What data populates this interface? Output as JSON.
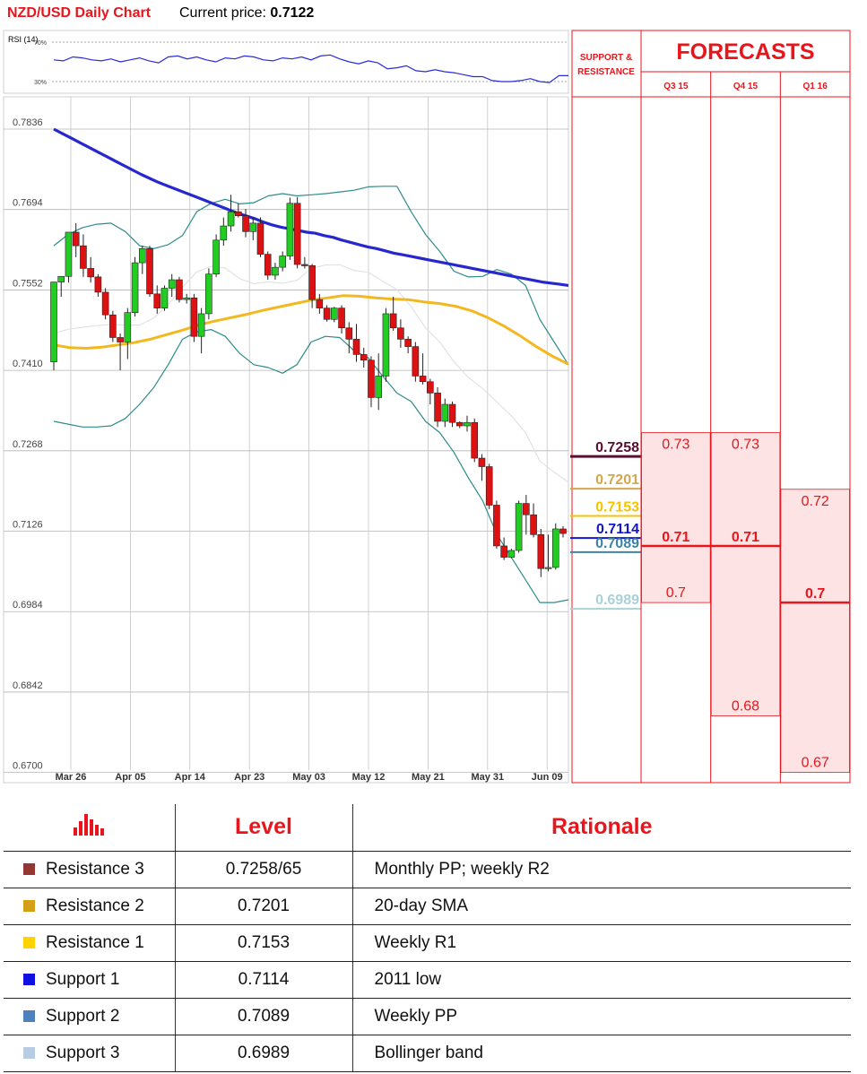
{
  "header": {
    "title": "NZD/USD Daily Chart",
    "price_label": "Current price:",
    "price_value": "0.7122"
  },
  "chart_data": [
    {
      "type": "line",
      "title": "RSI (14)",
      "ylim": [
        20,
        80
      ],
      "reference_lines": [
        {
          "label": "70%",
          "value": 70
        },
        {
          "label": "30%",
          "value": 30
        }
      ],
      "values": [
        52,
        51,
        55,
        54,
        52,
        51,
        53,
        50,
        52,
        54,
        51,
        49,
        55,
        56,
        53,
        55,
        52,
        50,
        54,
        53,
        56,
        55,
        52,
        51,
        54,
        53,
        55,
        52,
        56,
        57,
        53,
        50,
        48,
        51,
        49,
        43,
        44,
        46,
        41,
        40,
        42,
        40,
        39,
        37,
        35,
        35,
        31,
        30,
        30,
        31,
        33,
        30,
        29,
        36,
        36
      ],
      "color": "#2b2bd6"
    },
    {
      "type": "candlestick",
      "ylim": [
        0.6682,
        0.7893
      ],
      "y_ticks": [
        "0.7836",
        "0.7694",
        "0.7552",
        "0.7410",
        "0.7268",
        "0.7126",
        "0.6984",
        "0.6842",
        "0.6700"
      ],
      "x_ticks": [
        "Mar 26",
        "Apr 05",
        "Apr 14",
        "Apr 23",
        "May 03",
        "May 12",
        "May 21",
        "May 31",
        "Jun 09"
      ],
      "candles": [
        [
          0.7425,
          0.7566,
          0.741,
          0.7566
        ],
        [
          0.7566,
          0.7576,
          0.754,
          0.7576
        ],
        [
          0.7576,
          0.7654,
          0.7565,
          0.7654
        ],
        [
          0.7654,
          0.767,
          0.761,
          0.763
        ],
        [
          0.763,
          0.765,
          0.7575,
          0.759
        ],
        [
          0.759,
          0.761,
          0.7565,
          0.7575
        ],
        [
          0.7575,
          0.758,
          0.754,
          0.7548
        ],
        [
          0.7548,
          0.7555,
          0.75,
          0.7508
        ],
        [
          0.7508,
          0.7515,
          0.746,
          0.7468
        ],
        [
          0.7468,
          0.7475,
          0.741,
          0.746
        ],
        [
          0.746,
          0.752,
          0.743,
          0.7512
        ],
        [
          0.7512,
          0.761,
          0.7505,
          0.76
        ],
        [
          0.76,
          0.763,
          0.758,
          0.7625
        ],
        [
          0.7625,
          0.763,
          0.754,
          0.7545
        ],
        [
          0.7545,
          0.756,
          0.751,
          0.752
        ],
        [
          0.752,
          0.756,
          0.7515,
          0.7555
        ],
        [
          0.7555,
          0.758,
          0.754,
          0.757
        ],
        [
          0.757,
          0.7575,
          0.753,
          0.7535
        ],
        [
          0.7535,
          0.7545,
          0.7528,
          0.7538
        ],
        [
          0.7538,
          0.7545,
          0.746,
          0.747
        ],
        [
          0.747,
          0.752,
          0.744,
          0.751
        ],
        [
          0.751,
          0.759,
          0.75,
          0.758
        ],
        [
          0.758,
          0.765,
          0.7575,
          0.764
        ],
        [
          0.764,
          0.768,
          0.763,
          0.7665
        ],
        [
          0.7665,
          0.772,
          0.7655,
          0.769
        ],
        [
          0.769,
          0.7705,
          0.768,
          0.7683
        ],
        [
          0.7683,
          0.7695,
          0.7645,
          0.7655
        ],
        [
          0.7655,
          0.768,
          0.764,
          0.767
        ],
        [
          0.767,
          0.768,
          0.761,
          0.7615
        ],
        [
          0.7615,
          0.762,
          0.757,
          0.7578
        ],
        [
          0.7578,
          0.76,
          0.757,
          0.7592
        ],
        [
          0.7592,
          0.762,
          0.7585,
          0.7612
        ],
        [
          0.7612,
          0.7715,
          0.7605,
          0.7705
        ],
        [
          0.7705,
          0.7716,
          0.759,
          0.7597
        ],
        [
          0.7597,
          0.761,
          0.759,
          0.7595
        ],
        [
          0.7595,
          0.7598,
          0.752,
          0.7535
        ],
        [
          0.7535,
          0.7545,
          0.751,
          0.752
        ],
        [
          0.752,
          0.7525,
          0.7496,
          0.75
        ],
        [
          0.75,
          0.7522,
          0.7495,
          0.752
        ],
        [
          0.752,
          0.7525,
          0.7475,
          0.7485
        ],
        [
          0.7485,
          0.7495,
          0.744,
          0.7465
        ],
        [
          0.7465,
          0.7492,
          0.7425,
          0.7438
        ],
        [
          0.7438,
          0.745,
          0.7415,
          0.7428
        ],
        [
          0.7428,
          0.7435,
          0.7345,
          0.7362
        ],
        [
          0.7362,
          0.744,
          0.734,
          0.74
        ],
        [
          0.74,
          0.752,
          0.739,
          0.751
        ],
        [
          0.751,
          0.754,
          0.748,
          0.7485
        ],
        [
          0.7485,
          0.75,
          0.745,
          0.7465
        ],
        [
          0.7465,
          0.747,
          0.744,
          0.7452
        ],
        [
          0.7452,
          0.746,
          0.739,
          0.74
        ],
        [
          0.74,
          0.744,
          0.7385,
          0.739
        ],
        [
          0.739,
          0.7395,
          0.735,
          0.737
        ],
        [
          0.737,
          0.738,
          0.731,
          0.732
        ],
        [
          0.732,
          0.736,
          0.731,
          0.735
        ],
        [
          0.735,
          0.7355,
          0.731,
          0.7318
        ],
        [
          0.7318,
          0.732,
          0.7308,
          0.7312
        ],
        [
          0.7312,
          0.733,
          0.7302,
          0.7318
        ],
        [
          0.7318,
          0.7325,
          0.7248,
          0.7255
        ],
        [
          0.7255,
          0.7262,
          0.7215,
          0.724
        ],
        [
          0.724,
          0.7245,
          0.7165,
          0.7172
        ],
        [
          0.7172,
          0.718,
          0.7095,
          0.71
        ],
        [
          0.71,
          0.7115,
          0.7075,
          0.708
        ],
        [
          0.708,
          0.7095,
          0.7078,
          0.7092
        ],
        [
          0.7092,
          0.718,
          0.7088,
          0.7175
        ],
        [
          0.7175,
          0.719,
          0.712,
          0.7155
        ],
        [
          0.7155,
          0.7175,
          0.7115,
          0.712
        ],
        [
          0.712,
          0.713,
          0.7045,
          0.706
        ],
        [
          0.706,
          0.712,
          0.7055,
          0.7062
        ],
        [
          0.7062,
          0.714,
          0.7058,
          0.713
        ],
        [
          0.713,
          0.7135,
          0.7115,
          0.7122
        ]
      ],
      "series": [
        {
          "name": "",
          "color": "#2727d0",
          "values": [
            0.7836,
            0.7828,
            0.782,
            0.7812,
            0.7804,
            0.7796,
            0.7788,
            0.778,
            0.7772,
            0.7764,
            0.7756,
            0.7749,
            0.7742,
            0.7736,
            0.773,
            0.7724,
            0.7718,
            0.7712,
            0.7706,
            0.77,
            0.7694,
            0.7688,
            0.7683,
            0.7678,
            0.7672,
            0.7667,
            0.7663,
            0.766,
            0.7657,
            0.7654,
            0.7652,
            0.7648,
            0.7645,
            0.764,
            0.7636,
            0.7632,
            0.7628,
            0.7625,
            0.7621,
            0.7617,
            0.7614,
            0.7611,
            0.7608,
            0.7605,
            0.7602,
            0.7599,
            0.7596,
            0.7593,
            0.759,
            0.7587,
            0.7584,
            0.7581,
            0.7578,
            0.7575,
            0.7572,
            0.7569,
            0.7566,
            0.7564,
            0.7562,
            0.756
          ]
        },
        {
          "name": "",
          "color": "#f4b81f",
          "values": [
            0.7455,
            0.745,
            0.7449,
            0.7451,
            0.7455,
            0.7459,
            0.7465,
            0.7473,
            0.7481,
            0.749,
            0.7497,
            0.7503,
            0.7509,
            0.7516,
            0.7522,
            0.7528,
            0.7534,
            0.7538,
            0.7542,
            0.7541,
            0.7538,
            0.7536,
            0.7535,
            0.7531,
            0.7528,
            0.7523,
            0.7515,
            0.7503,
            0.7488,
            0.7471,
            0.7452,
            0.7435,
            0.7421
          ]
        },
        {
          "name": "",
          "color": "#2e8b8b",
          "values": [
            0.732,
            0.7315,
            0.731,
            0.731,
            0.7312,
            0.7325,
            0.735,
            0.738,
            0.742,
            0.7465,
            0.7478,
            0.7482,
            0.747,
            0.744,
            0.742,
            0.7415,
            0.7405,
            0.742,
            0.746,
            0.747,
            0.7468,
            0.7445,
            0.7432,
            0.74,
            0.737,
            0.7355,
            0.732,
            0.73,
            0.7265,
            0.722,
            0.718,
            0.712,
            0.708,
            0.704,
            0.7,
            0.7,
            0.7005
          ]
        },
        {
          "name": "",
          "color": "#2e8b8b",
          "values": [
            0.763,
            0.765,
            0.7662,
            0.7668,
            0.767,
            0.7655,
            0.763,
            0.7625,
            0.7632,
            0.7648,
            0.769,
            0.7705,
            0.7712,
            0.7704,
            0.7706,
            0.7718,
            0.7722,
            0.7718,
            0.772,
            0.7722,
            0.7725,
            0.7728,
            0.7734,
            0.7735,
            0.7735,
            0.769,
            0.765,
            0.762,
            0.7585,
            0.7575,
            0.7576,
            0.7588,
            0.758,
            0.756,
            0.75,
            0.746,
            0.742
          ]
        }
      ]
    },
    {
      "type": "table",
      "title": "FORECASTS",
      "columns": [
        "Q3 15",
        "Q4 15",
        "Q1 16"
      ],
      "highs": [
        0.73,
        0.73,
        0.72
      ],
      "means": [
        0.71,
        0.71,
        0.7
      ],
      "lows": [
        0.7,
        0.68,
        0.67
      ],
      "high_labels": [
        "0.73",
        "0.73",
        "0.72"
      ],
      "mean_labels": [
        "0.71",
        "0.71",
        "0.7"
      ],
      "low_labels": [
        "0.7",
        "0.68",
        "0.67"
      ]
    }
  ],
  "sr_panel": {
    "label_line1": "SUPPORT &",
    "label_line2": "RESISTANCE",
    "levels": [
      {
        "value": 0.7258,
        "label": "0.7258",
        "color": "#5a0f2e",
        "bold": true
      },
      {
        "value": 0.7201,
        "label": "0.7201",
        "color": "#d6a64e",
        "bold": false
      },
      {
        "value": 0.7153,
        "label": "0.7153",
        "color": "#f5c400",
        "bold": false
      },
      {
        "value": 0.7114,
        "label": "0.7114",
        "color": "#1414c8",
        "bold": false
      },
      {
        "value": 0.7089,
        "label": "0.7089",
        "color": "#3c83a8",
        "bold": false
      },
      {
        "value": 0.6989,
        "label": "0.6989",
        "color": "#a9d2d8",
        "bold": false
      }
    ]
  },
  "levels_table": {
    "head_level": "Level",
    "head_rationale": "Rationale",
    "rows": [
      {
        "name": "Resistance 3",
        "level": "0.7258/65",
        "rationale": "Monthly PP; weekly R2",
        "color": "#943634"
      },
      {
        "name": "Resistance 2",
        "level": "0.7201",
        "rationale": "20-day SMA",
        "color": "#d4a017"
      },
      {
        "name": "Resistance 1",
        "level": "0.7153",
        "rationale": "Weekly R1",
        "color": "#ffd200"
      },
      {
        "name": "Support 1",
        "level": "0.7114",
        "rationale": "2011 low",
        "color": "#1010e0"
      },
      {
        "name": "Support 2",
        "level": "0.7089",
        "rationale": "Weekly PP",
        "color": "#4f81bd"
      },
      {
        "name": "Support 3",
        "level": "0.6989",
        "rationale": "Bollinger band",
        "color": "#b8cce4"
      }
    ]
  }
}
